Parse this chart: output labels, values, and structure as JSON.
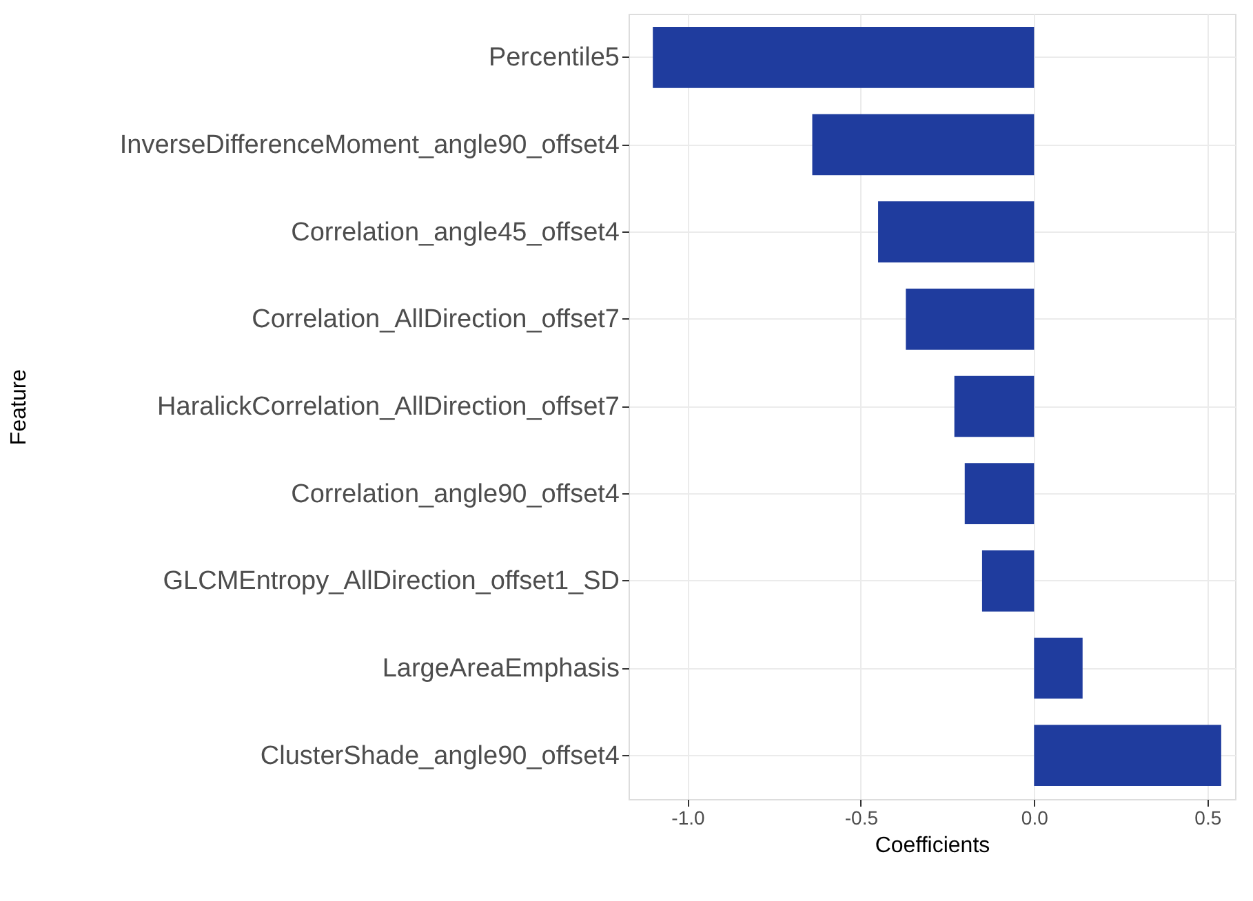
{
  "chart_data": {
    "type": "bar",
    "orientation": "horizontal",
    "xlabel": "Coefficients",
    "ylabel": "Feature",
    "categories": [
      "Percentile5",
      "InverseDifferenceMoment_angle90_offset4",
      "Correlation_angle45_offset4",
      "Correlation_AllDirection_offset7",
      "HaralickCorrelation_AllDirection_offset7",
      "Correlation_angle90_offset4",
      "GLCMEntropy_AllDirection_offset1_SD",
      "LargeAreaEmphasis",
      "ClusterShade_angle90_offset4"
    ],
    "values": [
      -1.1,
      -0.64,
      -0.45,
      -0.37,
      -0.23,
      -0.2,
      -0.15,
      0.14,
      0.54
    ],
    "color": "#1f3c9e",
    "xlim": [
      -1.17,
      0.58
    ],
    "xticks": [
      {
        "value": -1,
        "label": "-1.0"
      },
      -0.5,
      {
        "value": 0,
        "label": "0.0"
      },
      0.5
    ],
    "grid": true
  }
}
